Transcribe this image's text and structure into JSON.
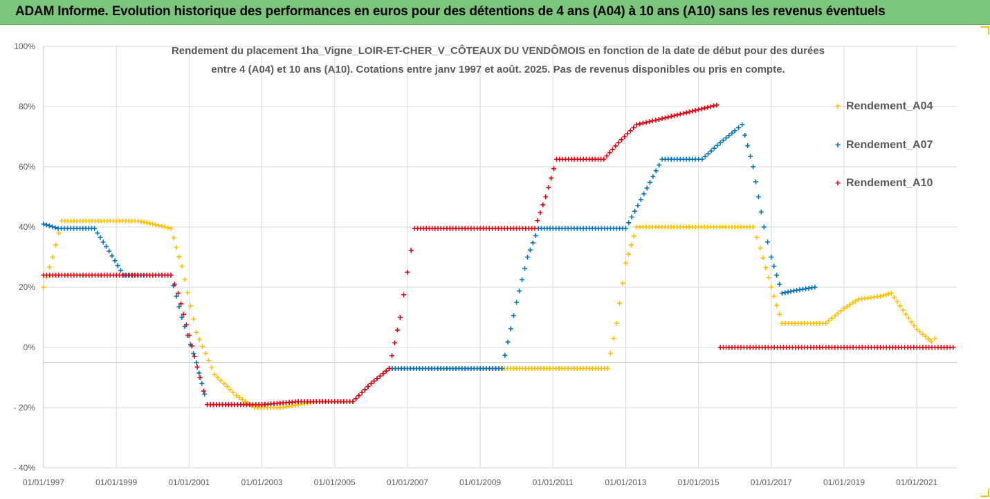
{
  "banner": {
    "title": "ADAM Informe. Evolution historique des performances en euros pour des détentions de 4 ans (A04) à 10 ans (A10) sans les revenus éventuels",
    "color": "#7bc67b"
  },
  "chart_data": {
    "type": "scatter",
    "title_line1": "Rendement du placement 1ha_Vigne_LOIR-ET-CHER_V_CÔTEAUX DU VENDÔMOIS en fonction de la date de début pour des durées",
    "title_line2": "entre 4 (A04) et 10 ans (A10). Cotations entre janv 1997 et août. 2025. Pas de revenus disponibles ou pris en compte.",
    "ylim": [
      -40,
      100
    ],
    "xlim": [
      1997.0,
      2022.1
    ],
    "yticks": [
      100,
      80,
      60,
      40,
      20,
      0,
      -20,
      -40
    ],
    "ytick_labels": [
      "100%",
      "80%",
      "60%",
      "40%",
      "20%",
      "0%",
      "- 20%",
      "- 40%"
    ],
    "xticks": [
      1997,
      1999,
      2001,
      2003,
      2005,
      2007,
      2009,
      2011,
      2013,
      2015,
      2017,
      2019,
      2021
    ],
    "xtick_labels": [
      "01/01/1997",
      "01/01/1999",
      "01/01/2001",
      "01/01/2003",
      "01/01/2005",
      "01/01/2007",
      "01/01/2009",
      "01/01/2011",
      "01/01/2013",
      "01/01/2015",
      "01/01/2017",
      "01/01/2019",
      "01/01/2021"
    ],
    "grid": true,
    "legend_position": "right",
    "series": [
      {
        "name": "Rendement_A04",
        "color": "#ffc000",
        "points": [
          [
            1997.0,
            20
          ],
          [
            1997.25,
            30
          ],
          [
            1997.5,
            42
          ],
          [
            1998.0,
            42
          ],
          [
            1999.0,
            42
          ],
          [
            1999.6,
            42
          ],
          [
            2000.0,
            41
          ],
          [
            2000.5,
            39.5
          ],
          [
            2000.8,
            27
          ],
          [
            2001.2,
            5
          ],
          [
            2001.7,
            -9
          ],
          [
            2002.3,
            -16
          ],
          [
            2002.8,
            -20
          ],
          [
            2003.5,
            -20
          ],
          [
            2004.0,
            -19
          ],
          [
            2004.5,
            -18
          ],
          [
            2005.5,
            -18
          ],
          [
            2006.0,
            -12
          ],
          [
            2006.5,
            -7
          ],
          [
            2007.5,
            -7
          ],
          [
            2009.0,
            -7
          ],
          [
            2010.0,
            -7
          ],
          [
            2011.0,
            -7
          ],
          [
            2012.0,
            -7
          ],
          [
            2012.5,
            -7
          ],
          [
            2012.75,
            8
          ],
          [
            2013.0,
            28
          ],
          [
            2013.3,
            40
          ],
          [
            2014.0,
            40
          ],
          [
            2015.0,
            40
          ],
          [
            2016.0,
            40
          ],
          [
            2016.5,
            40
          ],
          [
            2016.7,
            33
          ],
          [
            2017.0,
            20
          ],
          [
            2017.3,
            8
          ],
          [
            2018.0,
            8
          ],
          [
            2018.5,
            8
          ],
          [
            2019.0,
            13
          ],
          [
            2019.4,
            16
          ],
          [
            2020.0,
            17
          ],
          [
            2020.3,
            18
          ],
          [
            2020.7,
            11
          ],
          [
            2021.0,
            6
          ],
          [
            2021.4,
            2
          ],
          [
            2021.5,
            3
          ]
        ]
      },
      {
        "name": "Rendement_A07",
        "color": "#0070c0",
        "points": [
          [
            1997.0,
            41
          ],
          [
            1997.4,
            39.5
          ],
          [
            1998.0,
            39.5
          ],
          [
            1998.4,
            39.5
          ],
          [
            1998.8,
            32
          ],
          [
            1999.2,
            24
          ],
          [
            1999.6,
            24
          ],
          [
            2000.0,
            24
          ],
          [
            2000.5,
            24
          ],
          [
            2000.8,
            10
          ],
          [
            2001.2,
            -5
          ],
          [
            2001.5,
            -19
          ],
          [
            2002.0,
            -19
          ],
          [
            2003.0,
            -19
          ],
          [
            2003.5,
            -18.5
          ],
          [
            2004.0,
            -18
          ],
          [
            2005.0,
            -18
          ],
          [
            2005.5,
            -18
          ],
          [
            2006.0,
            -12
          ],
          [
            2006.5,
            -7
          ],
          [
            2007.0,
            -7
          ],
          [
            2008.0,
            -7
          ],
          [
            2009.0,
            -7
          ],
          [
            2009.6,
            -7
          ],
          [
            2010.0,
            15
          ],
          [
            2010.3,
            30
          ],
          [
            2010.6,
            39.5
          ],
          [
            2011.0,
            39.5
          ],
          [
            2012.0,
            39.5
          ],
          [
            2013.0,
            39.5
          ],
          [
            2013.5,
            51
          ],
          [
            2014.0,
            62.5
          ],
          [
            2015.0,
            62.5
          ],
          [
            2015.1,
            62.5
          ],
          [
            2015.6,
            68
          ],
          [
            2016.0,
            72
          ],
          [
            2016.2,
            74
          ],
          [
            2016.5,
            60
          ],
          [
            2016.8,
            40
          ],
          [
            2017.0,
            30
          ],
          [
            2017.3,
            18
          ],
          [
            2017.7,
            19
          ],
          [
            2018.2,
            20
          ]
        ]
      },
      {
        "name": "Rendement_A10",
        "color": "#e3000f",
        "points": [
          [
            1997.0,
            24
          ],
          [
            1998.0,
            24
          ],
          [
            1999.0,
            24
          ],
          [
            2000.0,
            24
          ],
          [
            2000.5,
            24
          ],
          [
            2000.7,
            18
          ],
          [
            2001.0,
            4
          ],
          [
            2001.3,
            -10
          ],
          [
            2001.5,
            -19
          ],
          [
            2002.0,
            -19
          ],
          [
            2003.0,
            -19
          ],
          [
            2003.5,
            -18.5
          ],
          [
            2004.0,
            -18
          ],
          [
            2005.0,
            -18
          ],
          [
            2005.5,
            -18
          ],
          [
            2006.0,
            -12
          ],
          [
            2006.5,
            -7
          ],
          [
            2006.8,
            10
          ],
          [
            2007.0,
            25
          ],
          [
            2007.2,
            39.5
          ],
          [
            2008.0,
            39.5
          ],
          [
            2009.0,
            39.5
          ],
          [
            2010.0,
            39.5
          ],
          [
            2010.5,
            39.5
          ],
          [
            2010.8,
            50
          ],
          [
            2011.1,
            62.5
          ],
          [
            2012.0,
            62.5
          ],
          [
            2012.4,
            62.5
          ],
          [
            2012.8,
            68
          ],
          [
            2013.3,
            74
          ],
          [
            2014.0,
            76
          ],
          [
            2015.0,
            79
          ],
          [
            2015.5,
            80.5
          ],
          [
            2015.6,
            0
          ],
          [
            2016.0,
            0
          ],
          [
            2017.0,
            0
          ],
          [
            2018.0,
            0
          ],
          [
            2019.0,
            0
          ],
          [
            2020.0,
            0
          ],
          [
            2021.0,
            0
          ],
          [
            2022.0,
            0
          ]
        ]
      }
    ]
  }
}
